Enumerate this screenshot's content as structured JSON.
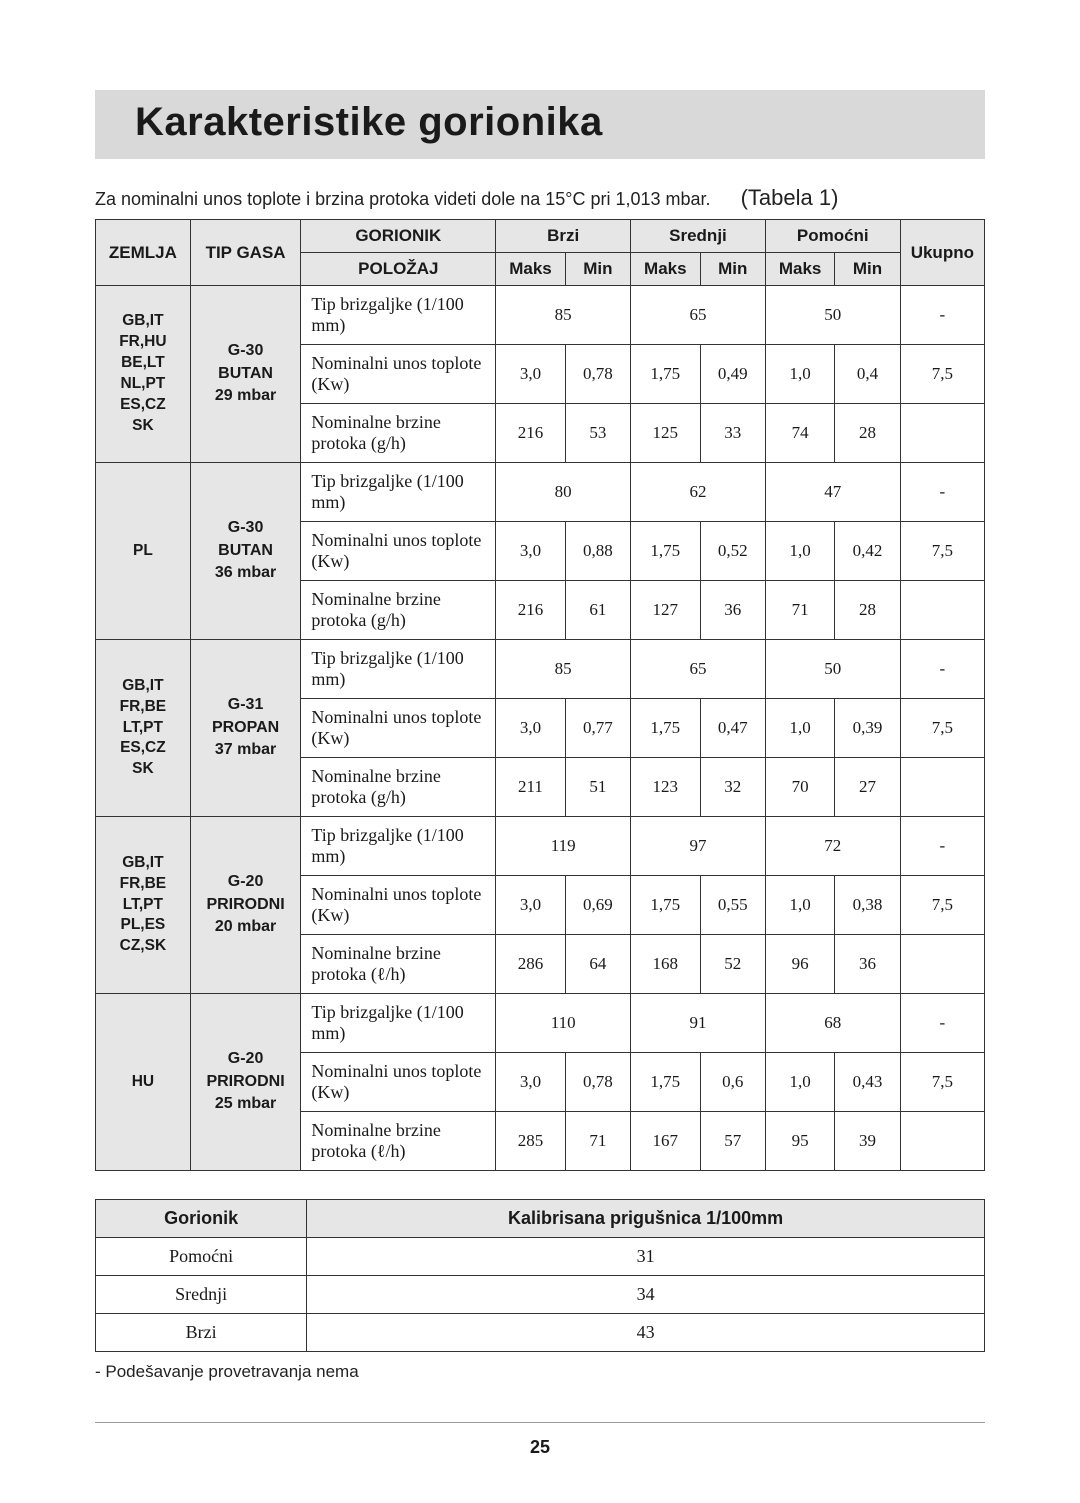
{
  "title": "Karakteristike gorionika",
  "intro": "Za nominalni unos toplote i brzina protoka videti dole na 15°C pri 1,013 mbar.",
  "tableLabel": "(Tabela 1)",
  "headers": {
    "country": "ZEMLJA",
    "gasType": "TIP GASA",
    "burner": "GORIONIK",
    "fast": "Brzi",
    "medium": "Srednji",
    "aux": "Pomoćni",
    "total": "Ukupno",
    "position": "POLOŽAJ",
    "max": "Maks",
    "min": "Min"
  },
  "rowLabels": {
    "injector": "Tip brizgaljke (1/100 mm)",
    "heat": "Nominalni unos toplote (Kw)",
    "flow_gh": "Nominalne brzine protoka (g/h)",
    "flow_lh": "Nominalne brzine protoka (ℓ/h)"
  },
  "groups": [
    {
      "country": "GB,IT\nFR,HU\nBE,LT\nNL,PT\nES,CZ\nSK",
      "gas": "G-30\nBUTAN\n29 mbar",
      "flowKey": "flow_gh",
      "injector": {
        "fast": "85",
        "medium": "65",
        "aux": "50",
        "total": "-"
      },
      "heat": {
        "fastMax": "3,0",
        "fastMin": "0,78",
        "medMax": "1,75",
        "medMin": "0,49",
        "auxMax": "1,0",
        "auxMin": "0,4",
        "total": "7,5"
      },
      "flow": {
        "fastMax": "216",
        "fastMin": "53",
        "medMax": "125",
        "medMin": "33",
        "auxMax": "74",
        "auxMin": "28",
        "total": ""
      }
    },
    {
      "country": "PL",
      "gas": "G-30\nBUTAN\n36 mbar",
      "flowKey": "flow_gh",
      "injector": {
        "fast": "80",
        "medium": "62",
        "aux": "47",
        "total": "-"
      },
      "heat": {
        "fastMax": "3,0",
        "fastMin": "0,88",
        "medMax": "1,75",
        "medMin": "0,52",
        "auxMax": "1,0",
        "auxMin": "0,42",
        "total": "7,5"
      },
      "flow": {
        "fastMax": "216",
        "fastMin": "61",
        "medMax": "127",
        "medMin": "36",
        "auxMax": "71",
        "auxMin": "28",
        "total": ""
      }
    },
    {
      "country": "GB,IT\nFR,BE\nLT,PT\nES,CZ\nSK",
      "gas": "G-31\nPROPAN\n37 mbar",
      "flowKey": "flow_gh",
      "injector": {
        "fast": "85",
        "medium": "65",
        "aux": "50",
        "total": "-"
      },
      "heat": {
        "fastMax": "3,0",
        "fastMin": "0,77",
        "medMax": "1,75",
        "medMin": "0,47",
        "auxMax": "1,0",
        "auxMin": "0,39",
        "total": "7,5"
      },
      "flow": {
        "fastMax": "211",
        "fastMin": "51",
        "medMax": "123",
        "medMin": "32",
        "auxMax": "70",
        "auxMin": "27",
        "total": ""
      }
    },
    {
      "country": "GB,IT\nFR,BE\nLT,PT\nPL,ES\nCZ,SK",
      "gas": "G-20\nPRIRODNI\n20 mbar",
      "flowKey": "flow_lh",
      "injector": {
        "fast": "119",
        "medium": "97",
        "aux": "72",
        "total": "-"
      },
      "heat": {
        "fastMax": "3,0",
        "fastMin": "0,69",
        "medMax": "1,75",
        "medMin": "0,55",
        "auxMax": "1,0",
        "auxMin": "0,38",
        "total": "7,5"
      },
      "flow": {
        "fastMax": "286",
        "fastMin": "64",
        "medMax": "168",
        "medMin": "52",
        "auxMax": "96",
        "auxMin": "36",
        "total": ""
      }
    },
    {
      "country": "HU",
      "gas": "G-20\nPRIRODNI\n25 mbar",
      "flowKey": "flow_lh",
      "injector": {
        "fast": "110",
        "medium": "91",
        "aux": "68",
        "total": "-"
      },
      "heat": {
        "fastMax": "3,0",
        "fastMin": "0,78",
        "medMax": "1,75",
        "medMin": "0,6",
        "auxMax": "1,0",
        "auxMin": "0,43",
        "total": "7,5"
      },
      "flow": {
        "fastMax": "285",
        "fastMin": "71",
        "medMax": "167",
        "medMin": "57",
        "auxMax": "95",
        "auxMin": "39",
        "total": ""
      }
    }
  ],
  "bypass": {
    "headers": {
      "burner": "Gorionik",
      "bypass": "Kalibrisana prigušnica 1/100mm"
    },
    "rows": [
      {
        "name": "Pomoćni",
        "value": "31"
      },
      {
        "name": "Srednji",
        "value": "34"
      },
      {
        "name": "Brzi",
        "value": "43"
      }
    ]
  },
  "footnote": "- Podešavanje provetravanja nema",
  "pageNumber": "25"
}
